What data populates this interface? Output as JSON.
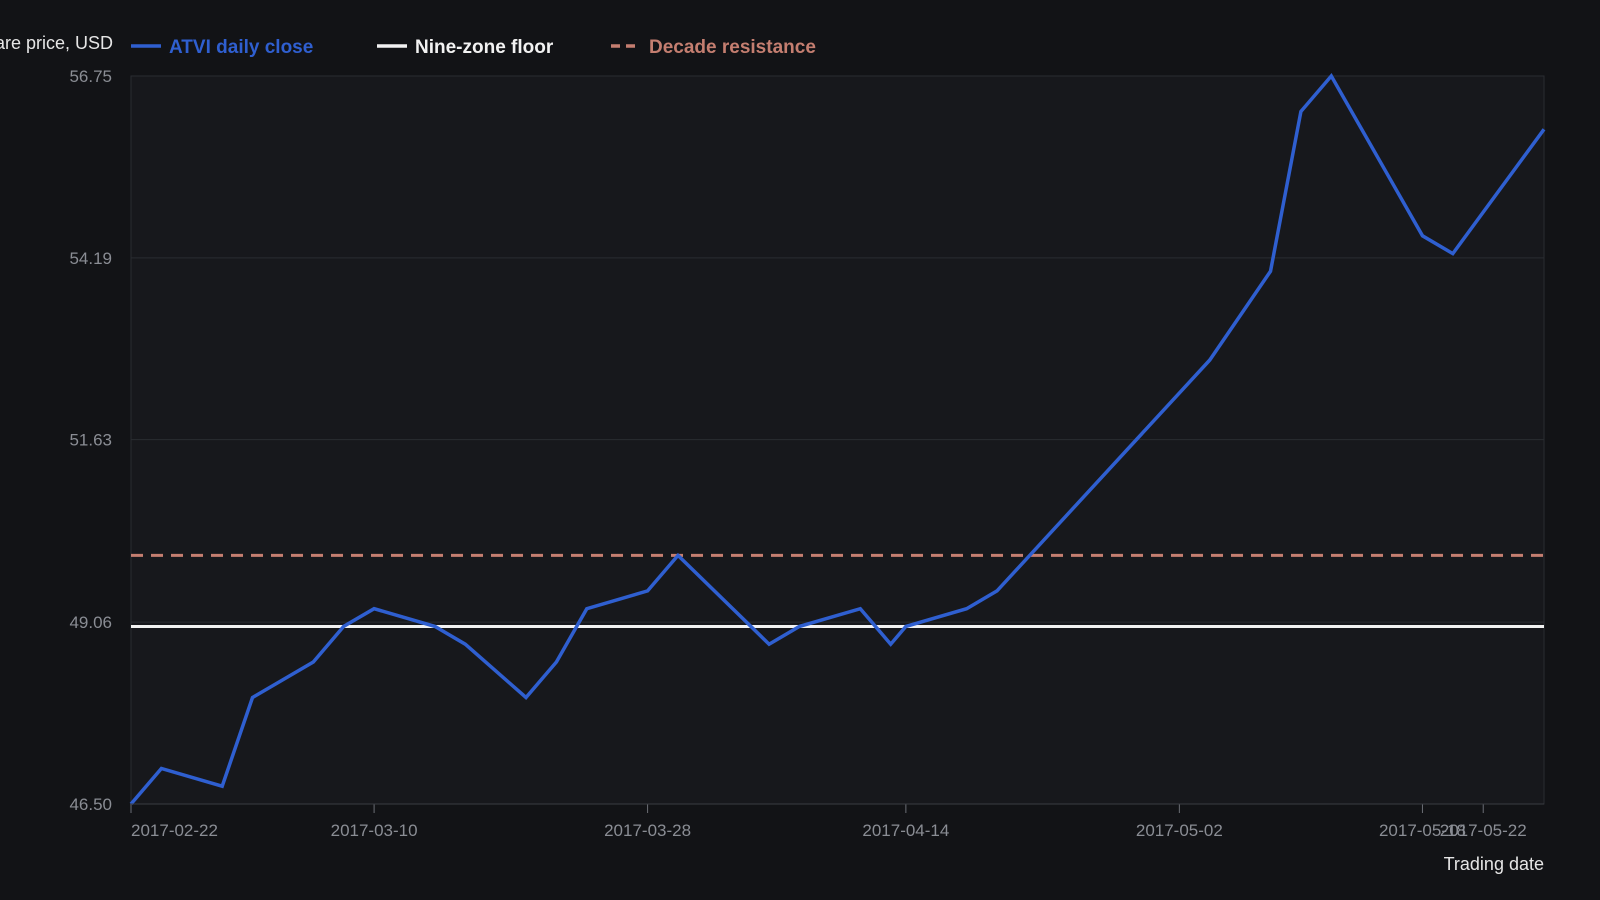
{
  "colors": {
    "background": "#121316",
    "plot_background": "#17181c",
    "grid": "#2a2c31",
    "price_line": "#2f5fd0",
    "floor_line": "#f2f2f2",
    "resistance_line": "#c47e70",
    "tick_text": "#8a8d94"
  },
  "legend": [
    {
      "label": "ATVI daily close",
      "color": "#2f5fd0",
      "style": "solid"
    },
    {
      "label": "Nine-zone floor",
      "color": "#f2f2f2",
      "style": "solid"
    },
    {
      "label": "Decade resistance",
      "color": "#c47e70",
      "style": "dashed"
    }
  ],
  "chart_data": {
    "type": "line",
    "title": "",
    "ylabel": "Share price, USD",
    "xlabel": "Trading date",
    "ylim": [
      46.5,
      56.75
    ],
    "yticks": [
      "56.75",
      "54.19",
      "51.63",
      "49.06",
      "46.50"
    ],
    "xticks": [
      "2017-02-22",
      "2017-03-10",
      "2017-03-28",
      "2017-04-14",
      "2017-05-02",
      "2017-05-18",
      "2017-05-22"
    ],
    "grid": true,
    "legend_position": "top-left",
    "series": [
      {
        "name": "ATVI daily close",
        "color": "#2f5fd0",
        "points": [
          [
            "2017-02-22",
            46.5
          ],
          [
            "2017-02-24",
            47.0
          ],
          [
            "2017-02-28",
            46.75
          ],
          [
            "2017-03-02",
            48.0
          ],
          [
            "2017-03-06",
            48.5
          ],
          [
            "2017-03-08",
            49.0
          ],
          [
            "2017-03-10",
            49.25
          ],
          [
            "2017-03-14",
            49.0
          ],
          [
            "2017-03-16",
            48.75
          ],
          [
            "2017-03-20",
            48.0
          ],
          [
            "2017-03-22",
            48.5
          ],
          [
            "2017-03-24",
            49.25
          ],
          [
            "2017-03-28",
            49.5
          ],
          [
            "2017-03-30",
            50.0
          ],
          [
            "2017-04-05",
            48.75
          ],
          [
            "2017-04-07",
            49.0
          ],
          [
            "2017-04-11",
            49.25
          ],
          [
            "2017-04-13",
            48.75
          ],
          [
            "2017-04-14",
            49.0
          ],
          [
            "2017-04-18",
            49.25
          ],
          [
            "2017-04-20",
            49.5
          ],
          [
            "2017-05-04",
            52.75
          ],
          [
            "2017-05-08",
            54.0
          ],
          [
            "2017-05-10",
            56.25
          ],
          [
            "2017-05-12",
            56.75
          ],
          [
            "2017-05-18",
            54.5
          ],
          [
            "2017-05-20",
            54.25
          ],
          [
            "2017-05-26",
            56.0
          ]
        ]
      },
      {
        "name": "Nine-zone floor",
        "color": "#f2f2f2",
        "constant": 49.0
      },
      {
        "name": "Decade resistance",
        "color": "#c47e70",
        "constant": 50.0
      }
    ]
  }
}
